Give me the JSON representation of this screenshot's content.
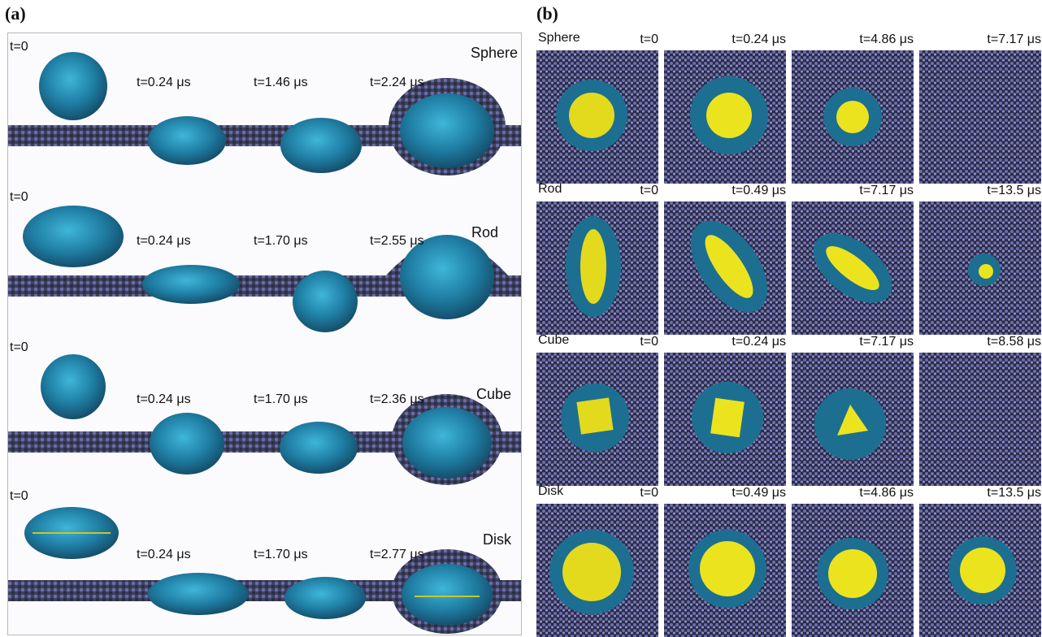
{
  "panel_a": {
    "tag": "(a)",
    "rows": [
      {
        "shape": "Sphere",
        "t0": "t=0",
        "times": [
          "t=0.24 μs",
          "t=1.46 μs",
          "t=2.24 μs"
        ]
      },
      {
        "shape": "Rod",
        "t0": "t=0",
        "times": [
          "t=0.24 μs",
          "t=1.70 μs",
          "t=2.55 μs"
        ]
      },
      {
        "shape": "Cube",
        "t0": "t=0",
        "times": [
          "t=0.24 μs",
          "t=1.70 μs",
          "t=2.36 μs"
        ]
      },
      {
        "shape": "Disk",
        "t0": "t=0",
        "times": [
          "t=0.24 μs",
          "t=1.70 μs",
          "t=2.77 μs"
        ]
      }
    ]
  },
  "panel_b": {
    "tag": "(b)",
    "rows": [
      {
        "shape": "Sphere",
        "times": [
          "t=0",
          "t=0.24 μs",
          "t=4.86 μs",
          "t=7.17 μs"
        ]
      },
      {
        "shape": "Rod",
        "times": [
          "t=0",
          "t=0.49 μs",
          "t=7.17 μs",
          "t=13.5 μs"
        ]
      },
      {
        "shape": "Cube",
        "times": [
          "t=0",
          "t=0.24 μs",
          "t=7.17 μs",
          "t=8.58 μs"
        ]
      },
      {
        "shape": "Disk",
        "times": [
          "t=0",
          "t=0.49 μs",
          "t=4.86 μs",
          "t=13.5 μs"
        ]
      }
    ]
  },
  "colors": {
    "membrane": "#4a4f6e",
    "membrane_light": "#7a7fb8",
    "coating": "#1f6f93",
    "coating_light": "#2aa3c8",
    "core": "#e8e11f",
    "tile_bg": "#2b2c45"
  }
}
